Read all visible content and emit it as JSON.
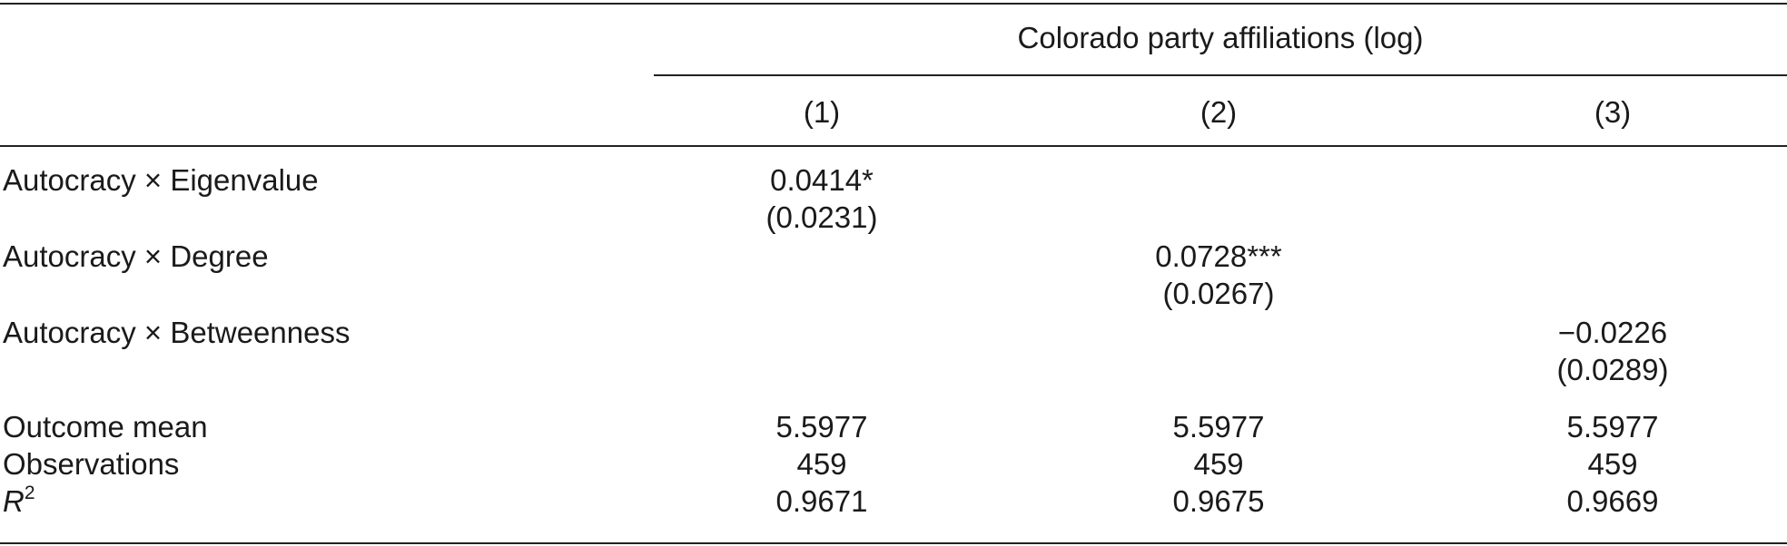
{
  "header": {
    "group_label": "Colorado party affiliations (log)",
    "columns": [
      "(1)",
      "(2)",
      "(3)"
    ]
  },
  "rows": [
    {
      "label": "Autocracy × Eigenvalue",
      "coef": "0.0414*",
      "se": "(0.0231)",
      "column": 1
    },
    {
      "label": "Autocracy × Degree",
      "coef": "0.0728***",
      "se": "(0.0267)",
      "column": 2
    },
    {
      "label": "Autocracy × Betweenness",
      "coef": "−0.0226",
      "se": "(0.0289)",
      "column": 3
    }
  ],
  "stats": [
    {
      "label": "Outcome mean",
      "values": [
        "5.5977",
        "5.5977",
        "5.5977"
      ]
    },
    {
      "label": "Observations",
      "values": [
        "459",
        "459",
        "459"
      ]
    },
    {
      "label_base": "R",
      "label_sup": "2",
      "values": [
        "0.9671",
        "0.9675",
        "0.9669"
      ]
    }
  ]
}
